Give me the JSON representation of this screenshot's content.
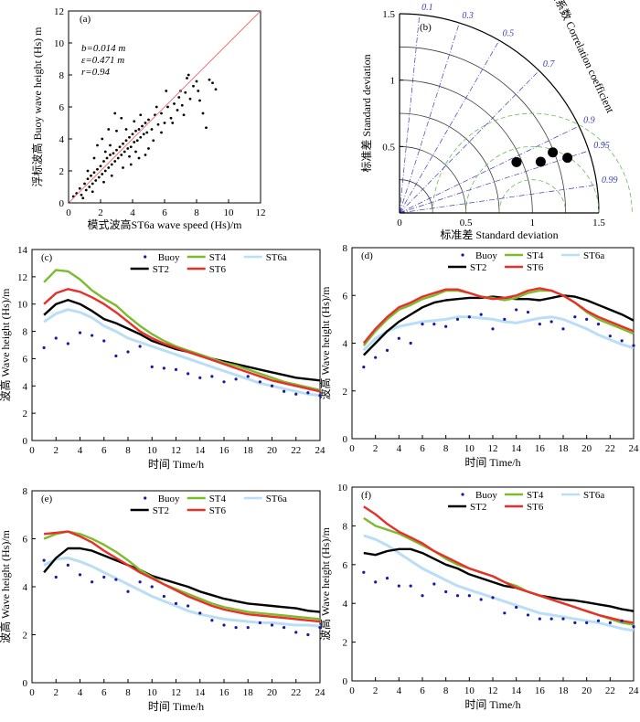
{
  "colors": {
    "buoy": "#1a1aa0",
    "st2": "#000000",
    "st4": "#7cbb2c",
    "st6": "#e8302a",
    "st6a": "#b9def5",
    "diag": "#e8787a",
    "scatter": "#000000",
    "taylor_grid": "#3a3a3a",
    "taylor_corr": "#3b3bbf",
    "taylor_rms": "#66bb55"
  },
  "chart_data": [
    {
      "id": "a",
      "type": "scatter",
      "panel_label": "(a)",
      "xlabel": "模式波高ST6a wave speed (Hs)/m",
      "ylabel": "浮标波高 Buoy wave height (Hs) m",
      "xlim": [
        0,
        12
      ],
      "ylim": [
        0,
        12
      ],
      "xticks": [
        0,
        2,
        4,
        6,
        8,
        10,
        12
      ],
      "yticks": [
        0,
        2,
        4,
        6,
        8,
        10,
        12
      ],
      "stats": [
        "b=0.014 m",
        "ε=0.471 m",
        "r=0.94"
      ],
      "reference_line": [
        [
          0,
          0
        ],
        [
          12,
          12
        ]
      ],
      "points": [
        [
          0.3,
          0.4
        ],
        [
          0.5,
          0.6
        ],
        [
          0.7,
          0.9
        ],
        [
          0.8,
          0.5
        ],
        [
          1.0,
          1.2
        ],
        [
          1.1,
          0.8
        ],
        [
          1.2,
          1.5
        ],
        [
          1.3,
          1.0
        ],
        [
          1.4,
          1.7
        ],
        [
          1.5,
          1.2
        ],
        [
          1.6,
          1.9
        ],
        [
          1.7,
          1.4
        ],
        [
          1.8,
          2.1
        ],
        [
          1.9,
          1.6
        ],
        [
          2.0,
          2.3
        ],
        [
          2.1,
          1.8
        ],
        [
          2.2,
          2.6
        ],
        [
          2.3,
          2.0
        ],
        [
          2.4,
          2.8
        ],
        [
          2.5,
          2.2
        ],
        [
          2.6,
          3.0
        ],
        [
          2.7,
          2.4
        ],
        [
          2.8,
          3.1
        ],
        [
          2.9,
          2.6
        ],
        [
          3.0,
          3.3
        ],
        [
          3.1,
          2.8
        ],
        [
          3.2,
          3.5
        ],
        [
          3.3,
          3.0
        ],
        [
          3.4,
          3.7
        ],
        [
          3.5,
          3.2
        ],
        [
          3.6,
          3.9
        ],
        [
          3.7,
          3.4
        ],
        [
          3.8,
          4.1
        ],
        [
          3.9,
          3.5
        ],
        [
          4.0,
          4.3
        ],
        [
          4.1,
          3.8
        ],
        [
          4.2,
          4.5
        ],
        [
          4.3,
          3.9
        ],
        [
          4.4,
          4.6
        ],
        [
          4.5,
          4.1
        ],
        [
          4.6,
          4.8
        ],
        [
          4.7,
          4.3
        ],
        [
          4.8,
          5.0
        ],
        [
          4.9,
          4.4
        ],
        [
          5.0,
          5.2
        ],
        [
          5.2,
          4.6
        ],
        [
          5.4,
          5.5
        ],
        [
          5.6,
          4.9
        ],
        [
          5.8,
          5.6
        ],
        [
          6.0,
          5.0
        ],
        [
          6.2,
          6.0
        ],
        [
          6.4,
          5.3
        ],
        [
          6.6,
          6.2
        ],
        [
          6.8,
          5.8
        ],
        [
          7.0,
          7.0
        ],
        [
          7.2,
          5.5
        ],
        [
          7.4,
          7.8
        ],
        [
          7.6,
          6.5
        ],
        [
          7.8,
          7.3
        ],
        [
          8.0,
          7.6
        ],
        [
          8.2,
          6.4
        ],
        [
          8.4,
          5.6
        ],
        [
          8.6,
          4.7
        ],
        [
          8.8,
          7.7
        ],
        [
          9.0,
          7.5
        ],
        [
          9.2,
          7.1
        ],
        [
          7.5,
          8.0
        ],
        [
          7.3,
          6.9
        ],
        [
          6.9,
          6.6
        ],
        [
          6.1,
          7.0
        ],
        [
          5.5,
          6.0
        ],
        [
          3.0,
          4.5
        ],
        [
          3.3,
          5.3
        ],
        [
          2.9,
          5.6
        ],
        [
          2.5,
          4.6
        ],
        [
          2.1,
          4.0
        ],
        [
          1.8,
          3.6
        ],
        [
          4.4,
          2.8
        ],
        [
          4.8,
          3.0
        ],
        [
          5.0,
          3.4
        ],
        [
          3.9,
          2.4
        ],
        [
          3.4,
          2.2
        ],
        [
          2.7,
          1.7
        ],
        [
          2.2,
          1.3
        ],
        [
          1.5,
          0.7
        ],
        [
          0.9,
          0.3
        ],
        [
          1.2,
          2.0
        ],
        [
          1.6,
          2.8
        ],
        [
          2.3,
          3.2
        ],
        [
          2.6,
          3.6
        ],
        [
          3.6,
          4.6
        ],
        [
          4.1,
          5.1
        ],
        [
          4.5,
          5.5
        ],
        [
          3.8,
          2.9
        ],
        [
          4.2,
          3.2
        ],
        [
          5.3,
          3.9
        ],
        [
          5.8,
          4.4
        ],
        [
          6.5,
          5.0
        ],
        [
          7.1,
          6.1
        ],
        [
          8.1,
          7.0
        ]
      ]
    },
    {
      "id": "b",
      "type": "taylor",
      "panel_label": "(b)",
      "xlabel": "标准差 Standard deviation",
      "ylabel": "标准差 Standard deviation",
      "corr_title": "相关系数 Correlation coefficient",
      "xticks": [
        0,
        0.5,
        1.0,
        1.5
      ],
      "yticks": [
        0,
        0.5,
        1.0,
        1.5
      ],
      "corr_ticks": [
        0.1,
        0.3,
        0.5,
        0.7,
        0.9,
        0.95,
        0.99
      ],
      "max_std": 1.5,
      "points": [
        {
          "std": 0.96,
          "corr": 0.917
        },
        {
          "std": 1.13,
          "corr": 0.94
        },
        {
          "std": 1.24,
          "corr": 0.93
        },
        {
          "std": 1.33,
          "corr": 0.95
        }
      ]
    },
    {
      "id": "c",
      "type": "line",
      "panel_label": "(c)",
      "xlabel": "时间 Time/h",
      "ylabel": "波高 Wave height (Hs)/m",
      "xlim": [
        0,
        24
      ],
      "ylim": [
        0,
        14
      ],
      "xticks": [
        0,
        2,
        4,
        6,
        8,
        10,
        12,
        14,
        16,
        18,
        20,
        22,
        24
      ],
      "yticks": [
        0,
        2,
        4,
        6,
        8,
        10,
        12,
        14
      ],
      "x": [
        1,
        2,
        3,
        4,
        5,
        6,
        7,
        8,
        9,
        10,
        11,
        12,
        13,
        14,
        15,
        16,
        17,
        18,
        19,
        20,
        21,
        22,
        23,
        24
      ],
      "series": [
        {
          "name": "ST2",
          "values": [
            9.2,
            10.0,
            10.3,
            10.0,
            9.5,
            8.9,
            8.6,
            8.2,
            7.8,
            7.3,
            7.0,
            6.7,
            6.5,
            6.2,
            6.0,
            5.8,
            5.6,
            5.4,
            5.2,
            5.0,
            4.8,
            4.6,
            4.5,
            4.4
          ]
        },
        {
          "name": "ST4",
          "values": [
            11.6,
            12.5,
            12.4,
            11.8,
            11.0,
            10.4,
            9.9,
            9.1,
            8.4,
            7.8,
            7.3,
            6.9,
            6.6,
            6.3,
            6.0,
            5.7,
            5.5,
            5.2,
            4.9,
            4.6,
            4.3,
            4.1,
            3.9,
            3.7
          ]
        },
        {
          "name": "ST6",
          "values": [
            10.0,
            10.8,
            11.1,
            10.9,
            10.5,
            10.0,
            9.4,
            8.7,
            8.0,
            7.5,
            7.1,
            6.8,
            6.5,
            6.2,
            5.9,
            5.6,
            5.3,
            5.0,
            4.7,
            4.4,
            4.2,
            4.0,
            3.8,
            3.6
          ]
        },
        {
          "name": "ST6a",
          "values": [
            8.7,
            9.3,
            9.6,
            9.4,
            9.0,
            8.4,
            8.0,
            7.5,
            7.2,
            6.9,
            6.6,
            6.3,
            6.0,
            5.7,
            5.4,
            5.1,
            4.8,
            4.5,
            4.2,
            4.0,
            3.8,
            3.6,
            3.4,
            3.3
          ]
        }
      ],
      "buoy": [
        6.8,
        7.5,
        7.1,
        7.9,
        7.7,
        7.3,
        6.2,
        6.5,
        6.9,
        5.4,
        5.3,
        5.2,
        4.9,
        4.6,
        4.7,
        4.3,
        4.5,
        4.7,
        4.3,
        4.0,
        3.6,
        3.4,
        3.5,
        3.3
      ],
      "legend": [
        "Buoy",
        "ST4",
        "ST6a",
        "ST2",
        "ST6"
      ]
    },
    {
      "id": "d",
      "type": "line",
      "panel_label": "(d)",
      "xlabel": "时间 Time/h",
      "ylabel": "波高 Wave height (Hs)/m",
      "xlim": [
        0,
        24
      ],
      "ylim": [
        0,
        8
      ],
      "xticks": [
        0,
        2,
        4,
        6,
        8,
        10,
        12,
        14,
        16,
        18,
        20,
        22,
        24
      ],
      "yticks": [
        0,
        2,
        4,
        6,
        8
      ],
      "x": [
        1,
        2,
        3,
        4,
        5,
        6,
        7,
        8,
        9,
        10,
        11,
        12,
        13,
        14,
        15,
        16,
        17,
        18,
        19,
        20,
        21,
        22,
        23,
        24
      ],
      "series": [
        {
          "name": "ST2",
          "values": [
            3.5,
            4.0,
            4.5,
            4.9,
            5.2,
            5.5,
            5.7,
            5.8,
            5.85,
            5.9,
            5.9,
            5.95,
            5.9,
            5.85,
            5.85,
            5.8,
            5.9,
            6.0,
            5.95,
            5.8,
            5.6,
            5.4,
            5.2,
            4.95
          ]
        },
        {
          "name": "ST4",
          "values": [
            3.9,
            4.5,
            5.0,
            5.4,
            5.6,
            5.85,
            6.0,
            6.2,
            6.2,
            6.1,
            5.95,
            5.9,
            5.8,
            5.9,
            6.1,
            6.2,
            6.2,
            6.0,
            5.7,
            5.3,
            5.0,
            4.8,
            4.6,
            4.4
          ]
        },
        {
          "name": "ST6",
          "values": [
            4.0,
            4.6,
            5.1,
            5.5,
            5.7,
            5.95,
            6.1,
            6.25,
            6.25,
            6.1,
            5.95,
            5.85,
            5.9,
            6.0,
            6.2,
            6.3,
            6.2,
            6.0,
            5.7,
            5.35,
            5.1,
            4.9,
            4.7,
            4.5
          ]
        },
        {
          "name": "ST6a",
          "values": [
            3.7,
            4.2,
            4.5,
            4.7,
            4.8,
            4.9,
            4.95,
            5.0,
            5.1,
            5.1,
            5.05,
            5.0,
            4.9,
            4.85,
            4.95,
            5.05,
            5.1,
            5.0,
            4.8,
            4.6,
            4.35,
            4.15,
            3.95,
            3.8
          ]
        }
      ],
      "buoy": [
        3.0,
        3.4,
        3.7,
        4.2,
        4.0,
        4.8,
        4.8,
        4.7,
        5.0,
        5.1,
        5.2,
        4.6,
        5.0,
        5.4,
        5.3,
        4.8,
        4.9,
        4.6,
        5.1,
        5.0,
        4.8,
        4.3,
        4.1,
        3.9
      ],
      "legend": [
        "Buoy",
        "ST4",
        "ST6a",
        "ST2",
        "ST6"
      ]
    },
    {
      "id": "e",
      "type": "line",
      "panel_label": "(e)",
      "xlabel": "时间 Time/h",
      "ylabel": "波高 Wave height (Hs)/m",
      "xlim": [
        0,
        24
      ],
      "ylim": [
        0,
        8
      ],
      "xticks": [
        0,
        2,
        4,
        6,
        8,
        10,
        12,
        14,
        16,
        18,
        20,
        22,
        24
      ],
      "yticks": [
        0,
        2,
        4,
        6,
        8
      ],
      "x": [
        1,
        2,
        3,
        4,
        5,
        6,
        7,
        8,
        9,
        10,
        11,
        12,
        13,
        14,
        15,
        16,
        17,
        18,
        19,
        20,
        21,
        22,
        23,
        24
      ],
      "series": [
        {
          "name": "ST2",
          "values": [
            4.6,
            5.2,
            5.6,
            5.6,
            5.5,
            5.3,
            5.1,
            4.9,
            4.7,
            4.45,
            4.3,
            4.15,
            4.0,
            3.8,
            3.65,
            3.5,
            3.4,
            3.3,
            3.25,
            3.2,
            3.15,
            3.1,
            3.0,
            2.95
          ]
        },
        {
          "name": "ST4",
          "values": [
            6.0,
            6.2,
            6.3,
            6.2,
            6.0,
            5.75,
            5.45,
            5.1,
            4.7,
            4.4,
            4.1,
            3.9,
            3.7,
            3.5,
            3.3,
            3.15,
            3.05,
            2.95,
            2.9,
            2.85,
            2.8,
            2.75,
            2.7,
            2.65
          ]
        },
        {
          "name": "ST6",
          "values": [
            6.2,
            6.25,
            6.3,
            6.1,
            5.85,
            5.5,
            5.2,
            4.9,
            4.6,
            4.35,
            4.1,
            3.85,
            3.6,
            3.4,
            3.2,
            3.05,
            2.95,
            2.85,
            2.8,
            2.75,
            2.7,
            2.65,
            2.6,
            2.55
          ]
        },
        {
          "name": "ST6a",
          "values": [
            4.9,
            5.15,
            5.2,
            5.05,
            4.85,
            4.6,
            4.35,
            4.1,
            3.85,
            3.6,
            3.4,
            3.2,
            3.0,
            2.85,
            2.75,
            2.65,
            2.6,
            2.55,
            2.5,
            2.5,
            2.45,
            2.4,
            2.4,
            2.35
          ]
        }
      ],
      "buoy": [
        5.1,
        4.4,
        4.9,
        4.5,
        4.2,
        4.4,
        4.3,
        3.8,
        4.2,
        4.0,
        3.6,
        3.3,
        3.2,
        2.9,
        2.6,
        2.4,
        2.3,
        2.3,
        2.5,
        2.4,
        2.3,
        2.1,
        2.0,
        2.3
      ],
      "legend": [
        "Buoy",
        "ST4",
        "ST6a",
        "ST2",
        "ST6"
      ]
    },
    {
      "id": "f",
      "type": "line",
      "panel_label": "(f)",
      "xlabel": "时间 Time/h",
      "ylabel": "波高 Wave height (Hs)/m",
      "xlim": [
        0,
        24
      ],
      "ylim": [
        0,
        10
      ],
      "xticks": [
        0,
        2,
        4,
        6,
        8,
        10,
        12,
        14,
        16,
        18,
        20,
        22,
        24
      ],
      "yticks": [
        0,
        2,
        4,
        6,
        8,
        10
      ],
      "x": [
        1,
        2,
        3,
        4,
        5,
        6,
        7,
        8,
        9,
        10,
        11,
        12,
        13,
        14,
        15,
        16,
        17,
        18,
        19,
        20,
        21,
        22,
        23,
        24
      ],
      "series": [
        {
          "name": "ST2",
          "values": [
            6.6,
            6.5,
            6.7,
            6.8,
            6.8,
            6.6,
            6.3,
            6.0,
            5.8,
            5.5,
            5.3,
            5.1,
            4.9,
            4.8,
            4.6,
            4.4,
            4.3,
            4.2,
            4.15,
            4.05,
            3.95,
            3.85,
            3.7,
            3.6
          ]
        },
        {
          "name": "ST4",
          "values": [
            8.4,
            8.0,
            7.8,
            7.6,
            7.3,
            7.0,
            6.7,
            6.3,
            6.0,
            5.8,
            5.6,
            5.4,
            5.1,
            4.9,
            4.6,
            4.4,
            4.2,
            4.0,
            3.8,
            3.6,
            3.4,
            3.2,
            3.0,
            2.9
          ]
        },
        {
          "name": "ST6",
          "values": [
            9.0,
            8.6,
            8.1,
            7.7,
            7.4,
            7.1,
            6.7,
            6.4,
            6.1,
            5.8,
            5.6,
            5.4,
            5.1,
            4.8,
            4.6,
            4.4,
            4.2,
            4.0,
            3.8,
            3.6,
            3.4,
            3.25,
            3.1,
            3.0
          ]
        },
        {
          "name": "ST6a",
          "values": [
            7.5,
            7.3,
            7.0,
            6.6,
            6.2,
            5.8,
            5.5,
            5.2,
            4.9,
            4.7,
            4.5,
            4.3,
            4.1,
            3.9,
            3.7,
            3.5,
            3.4,
            3.3,
            3.2,
            3.1,
            3.0,
            2.85,
            2.7,
            2.6
          ]
        }
      ],
      "buoy": [
        5.6,
        5.1,
        5.3,
        4.9,
        4.9,
        4.4,
        5.0,
        4.6,
        4.4,
        4.4,
        4.2,
        4.3,
        3.5,
        3.8,
        3.4,
        3.2,
        3.2,
        3.2,
        3.0,
        3.0,
        3.1,
        3.0,
        3.1,
        2.8
      ],
      "legend": [
        "Buoy",
        "ST4",
        "ST6a",
        "ST2",
        "ST6"
      ]
    }
  ]
}
